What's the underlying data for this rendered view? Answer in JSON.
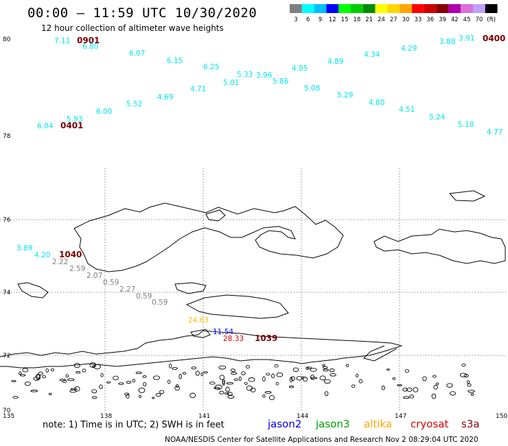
{
  "header": {
    "title": "00:00 – 11:59 UTC 10/30/2020",
    "subtitle": "12 hour collection of altimeter wave heights"
  },
  "colorbar": {
    "colors": [
      "#7f7f7f",
      "#00ffff",
      "#00bfff",
      "#0000ff",
      "#00ff00",
      "#00cd00",
      "#008b00",
      "#ffff00",
      "#ffd700",
      "#ffa500",
      "#ff0000",
      "#cd0000",
      "#8b0000",
      "#b000b0",
      "#da70d6",
      "#c0a0ff",
      "#000000"
    ],
    "labels": [
      "3",
      "6",
      "9",
      "12",
      "15",
      "18",
      "21",
      "24",
      "27",
      "30",
      "33",
      "36",
      "39",
      "42",
      "45",
      "70",
      "(ft)"
    ]
  },
  "axes": {
    "lat_labels": [
      "80",
      "78",
      "76",
      "74",
      "72",
      "70"
    ],
    "lon_labels": [
      "135",
      "138",
      "141",
      "144",
      "147",
      "150"
    ]
  },
  "wave_labels": [
    {
      "text": "7.11",
      "color": "#00e5ee"
    },
    {
      "text": "0901",
      "color": "#7a0000"
    },
    {
      "text": "6.80",
      "color": "#00e5ee"
    },
    {
      "text": "6.07",
      "color": "#00e5ee"
    },
    {
      "text": "6.15",
      "color": "#00e5ee"
    },
    {
      "text": "6.25",
      "color": "#00e5ee"
    },
    {
      "text": "5.33",
      "color": "#00e5ee"
    },
    {
      "text": "3.96",
      "color": "#00e5ee"
    },
    {
      "text": "5.86",
      "color": "#00e5ee"
    },
    {
      "text": "4.85",
      "color": "#00e5ee"
    },
    {
      "text": "4.89",
      "color": "#00e5ee"
    },
    {
      "text": "4.34",
      "color": "#00e5ee"
    },
    {
      "text": "4.29",
      "color": "#00e5ee"
    },
    {
      "text": "3.88",
      "color": "#00e5ee"
    },
    {
      "text": "3.91",
      "color": "#00e5ee"
    },
    {
      "text": "0400",
      "color": "#7a0000"
    },
    {
      "text": "5.01",
      "color": "#00e5ee"
    },
    {
      "text": "4.71",
      "color": "#00e5ee"
    },
    {
      "text": "4.69",
      "color": "#00e5ee"
    },
    {
      "text": "5.52",
      "color": "#00e5ee"
    },
    {
      "text": "6.00",
      "color": "#00e5ee"
    },
    {
      "text": "5.93",
      "color": "#00e5ee"
    },
    {
      "text": "6.04",
      "color": "#00e5ee"
    },
    {
      "text": "0401",
      "color": "#7a0000"
    },
    {
      "text": "5.08",
      "color": "#00e5ee"
    },
    {
      "text": "5.29",
      "color": "#00e5ee"
    },
    {
      "text": "4.80",
      "color": "#00e5ee"
    },
    {
      "text": "4.51",
      "color": "#00e5ee"
    },
    {
      "text": "5.24",
      "color": "#00e5ee"
    },
    {
      "text": "5.18",
      "color": "#00e5ee"
    },
    {
      "text": "4.77",
      "color": "#00e5ee"
    },
    {
      "text": "3.89",
      "color": "#00e5ee"
    },
    {
      "text": "4.20",
      "color": "#00e5ee"
    },
    {
      "text": "1040",
      "color": "#7a0000"
    },
    {
      "text": "2.22",
      "color": "#808080"
    },
    {
      "text": "2.59",
      "color": "#808080"
    },
    {
      "text": "2.07",
      "color": "#808080"
    },
    {
      "text": "0.59",
      "color": "#808080"
    },
    {
      "text": "2.27",
      "color": "#808080"
    },
    {
      "text": "0.59",
      "color": "#808080"
    },
    {
      "text": "0.59",
      "color": "#808080"
    },
    {
      "text": "24.63",
      "color": "#ffc000"
    },
    {
      "text": "11.54",
      "color": "#0000ff"
    },
    {
      "text": "28.33",
      "color": "#cd0000"
    },
    {
      "text": "1039",
      "color": "#7a0000"
    }
  ],
  "footer": {
    "note": "note:  1) Time is in UTC;  2) SWH is in feet",
    "satellites": [
      {
        "name": "jason2",
        "color": "#0000ee"
      },
      {
        "name": "jason3",
        "color": "#00a000"
      },
      {
        "name": "altika",
        "color": "#ffa500"
      },
      {
        "name": "cryosat",
        "color": "#dd0000"
      },
      {
        "name": "s3a",
        "color": "#8b0000"
      }
    ],
    "credit": "NOAA/NESDIS Center for Satellite Applications and Research    Nov  2 08:29:04 UTC 2020"
  }
}
